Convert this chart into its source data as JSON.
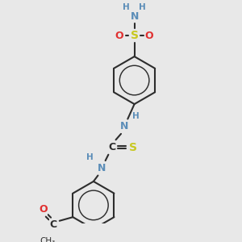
{
  "bg_color": "#e8e8e8",
  "bond_color": "#2d2d2d",
  "bond_width": 1.5,
  "colors": {
    "C": "#2d2d2d",
    "N": "#5b8db8",
    "O": "#e03030",
    "S": "#c8c820",
    "H": "#5b8db8"
  },
  "font_size": 9,
  "font_size_small": 7.5
}
